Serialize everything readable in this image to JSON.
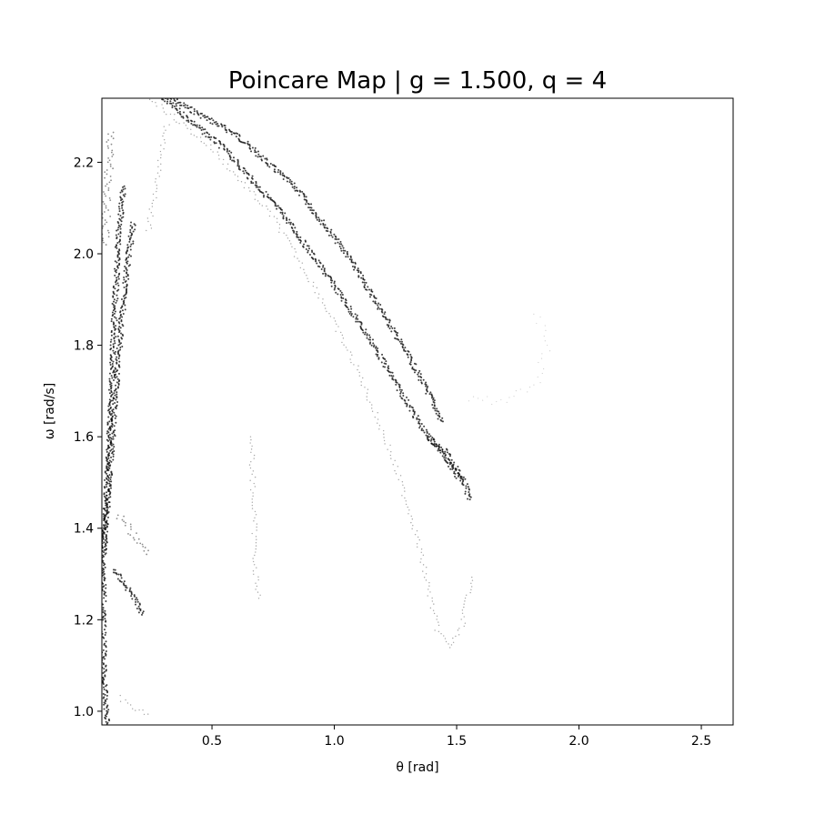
{
  "chart_data": {
    "type": "scatter",
    "title": "Poincare Map | g = 1.500, q = 4",
    "xlabel": "θ [rad]",
    "ylabel": "ω [rad/s]",
    "xlim": [
      0.05,
      2.63
    ],
    "ylim": [
      0.97,
      2.34
    ],
    "x_ticks": [
      0.5,
      1.0,
      1.5,
      2.0,
      2.5
    ],
    "x_tick_labels": [
      "0.5",
      "1.0",
      "1.5",
      "2.0",
      "2.5"
    ],
    "y_ticks": [
      1.0,
      1.2,
      1.4,
      1.6,
      1.8,
      2.0,
      2.2
    ],
    "y_tick_labels": [
      "1.0",
      "1.2",
      "1.4",
      "1.6",
      "1.8",
      "2.0",
      "2.2"
    ],
    "grid": false,
    "marker_color": "#000000",
    "background_color": "#ffffff",
    "strands": [
      {
        "id": "main-arc-outer",
        "density": "heavy",
        "points": [
          [
            0.33,
            2.34
          ],
          [
            0.6,
            2.26
          ],
          [
            0.85,
            2.14
          ],
          [
            1.05,
            2.0
          ],
          [
            1.2,
            1.87
          ],
          [
            1.32,
            1.76
          ],
          [
            1.4,
            1.68
          ],
          [
            1.44,
            1.63
          ]
        ]
      },
      {
        "id": "main-arc-inner",
        "density": "heavy",
        "points": [
          [
            0.3,
            2.34
          ],
          [
            0.55,
            2.23
          ],
          [
            0.8,
            2.08
          ],
          [
            1.0,
            1.93
          ],
          [
            1.15,
            1.81
          ],
          [
            1.27,
            1.7
          ],
          [
            1.37,
            1.61
          ],
          [
            1.45,
            1.56
          ],
          [
            1.52,
            1.5
          ]
        ]
      },
      {
        "id": "main-arc-tail",
        "density": "heavy",
        "points": [
          [
            1.38,
            1.6
          ],
          [
            1.45,
            1.57
          ],
          [
            1.5,
            1.53
          ],
          [
            1.54,
            1.49
          ],
          [
            1.55,
            1.46
          ]
        ]
      },
      {
        "id": "faint-outer-arc",
        "density": "light",
        "points": [
          [
            0.25,
            2.34
          ],
          [
            0.5,
            2.23
          ],
          [
            0.75,
            2.08
          ],
          [
            0.95,
            1.9
          ],
          [
            1.1,
            1.74
          ],
          [
            1.22,
            1.58
          ],
          [
            1.32,
            1.42
          ],
          [
            1.38,
            1.28
          ],
          [
            1.42,
            1.18
          ],
          [
            1.47,
            1.14
          ],
          [
            1.52,
            1.18
          ],
          [
            1.56,
            1.3
          ]
        ]
      },
      {
        "id": "left-band-a",
        "density": "heavy",
        "points": [
          [
            0.06,
            1.35
          ],
          [
            0.08,
            1.6
          ],
          [
            0.1,
            1.85
          ],
          [
            0.12,
            2.05
          ],
          [
            0.14,
            2.15
          ]
        ]
      },
      {
        "id": "left-band-b",
        "density": "heavy",
        "points": [
          [
            0.065,
            1.4
          ],
          [
            0.1,
            1.65
          ],
          [
            0.13,
            1.85
          ],
          [
            0.16,
            2.0
          ],
          [
            0.18,
            2.07
          ]
        ]
      },
      {
        "id": "left-band-c",
        "density": "medium",
        "points": [
          [
            0.06,
            2.02
          ],
          [
            0.07,
            2.1
          ],
          [
            0.08,
            2.2
          ],
          [
            0.09,
            2.27
          ]
        ]
      },
      {
        "id": "left-edge-lower",
        "density": "heavy",
        "points": [
          [
            0.06,
            1.4
          ],
          [
            0.055,
            1.2
          ],
          [
            0.06,
            1.05
          ],
          [
            0.075,
            0.97
          ]
        ]
      },
      {
        "id": "left-upper-thin",
        "density": "light",
        "points": [
          [
            0.24,
            2.05
          ],
          [
            0.27,
            2.15
          ],
          [
            0.3,
            2.25
          ],
          [
            0.32,
            2.29
          ]
        ]
      },
      {
        "id": "lower-left-blob-1",
        "density": "medium",
        "points": [
          [
            0.12,
            1.43
          ],
          [
            0.16,
            1.4
          ],
          [
            0.2,
            1.37
          ],
          [
            0.24,
            1.34
          ]
        ]
      },
      {
        "id": "lower-left-blob-2",
        "density": "heavy",
        "points": [
          [
            0.1,
            1.31
          ],
          [
            0.14,
            1.28
          ],
          [
            0.18,
            1.25
          ],
          [
            0.22,
            1.21
          ]
        ]
      },
      {
        "id": "lower-left-streak",
        "density": "light",
        "points": [
          [
            0.12,
            1.03
          ],
          [
            0.18,
            1.01
          ],
          [
            0.25,
            0.99
          ]
        ]
      },
      {
        "id": "mid-thin-vertical",
        "density": "light",
        "points": [
          [
            0.66,
            1.6
          ],
          [
            0.67,
            1.45
          ],
          [
            0.68,
            1.3
          ],
          [
            0.69,
            1.24
          ]
        ]
      },
      {
        "id": "right-faint-loop",
        "density": "faint",
        "points": [
          [
            1.55,
            1.68
          ],
          [
            1.7,
            1.68
          ],
          [
            1.83,
            1.72
          ],
          [
            1.87,
            1.8
          ],
          [
            1.82,
            1.88
          ]
        ]
      }
    ]
  }
}
